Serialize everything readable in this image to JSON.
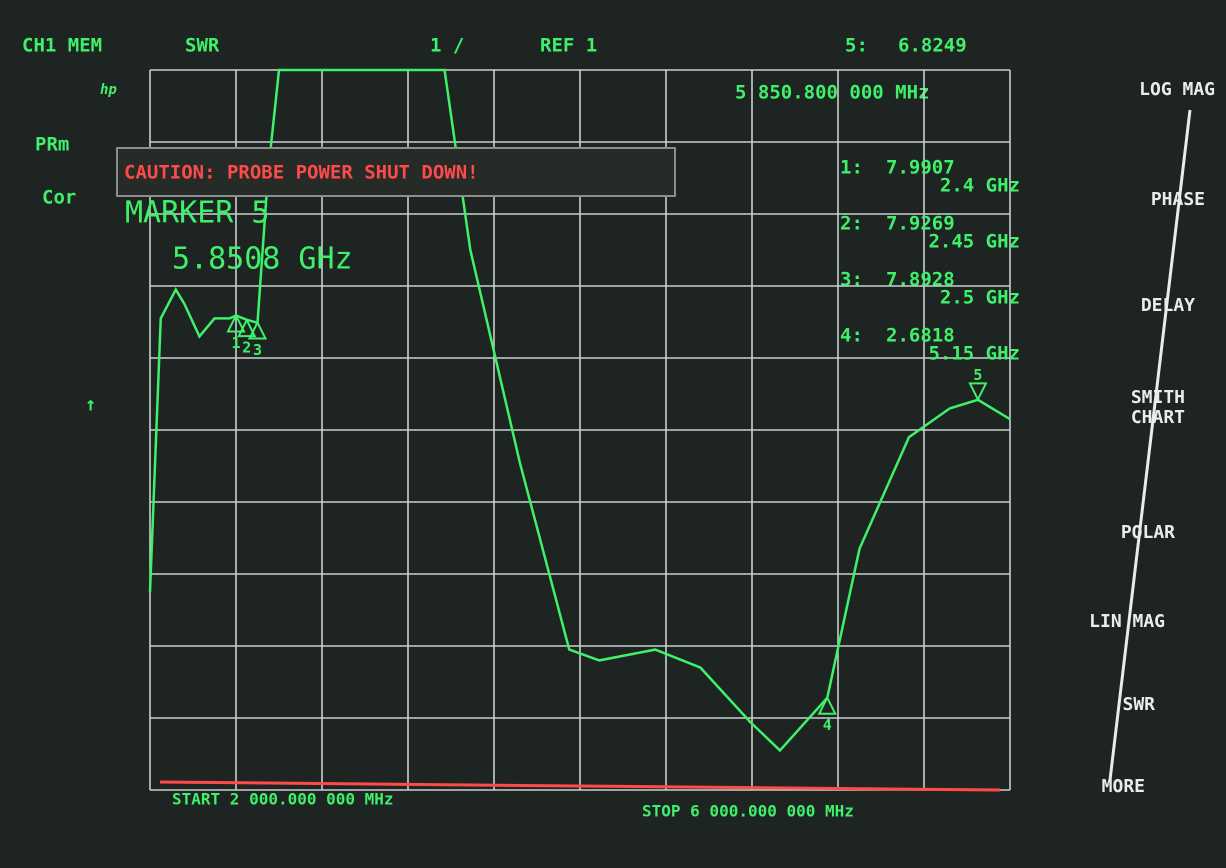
{
  "screen": {
    "channel": "CH1 MEM",
    "format": "SWR",
    "scale": "1 /",
    "reference": "REF 1",
    "active_marker": "5:",
    "active_freq": "5 850.800 000 MHz",
    "logo": "hp",
    "side_flags": [
      "PRm",
      "Cor"
    ],
    "caution": "CAUTION: PROBE POWER SHUT DOWN!",
    "marker_entry_label": "MARKER 5",
    "marker_entry_value": "5.8508 GHz",
    "marker_list": [
      {
        "label": "1:",
        "freq": "2.4 GHz"
      },
      {
        "label": "2:",
        "freq": "2.45 GHz"
      },
      {
        "label": "3:",
        "freq": "2.5 GHz"
      },
      {
        "label": "4:",
        "freq": "5.15 GHz"
      }
    ],
    "start": "START 2 000.000 000 MHz",
    "stop": "STOP 6 000.000 000 MHz",
    "menu": [
      [
        "LOG MAG"
      ],
      [
        "PHASE"
      ],
      [
        "DELAY"
      ],
      [
        "SMITH",
        "CHART"
      ],
      [
        "POLAR"
      ],
      [
        "LIN MAG"
      ],
      [
        "SWR"
      ],
      [
        "MORE"
      ]
    ]
  },
  "chart_data": {
    "type": "line",
    "color": "#3ef06a",
    "x": [
      2.0,
      2.05,
      2.12,
      2.16,
      2.23,
      2.3,
      2.37,
      2.4,
      2.45,
      2.5,
      2.55,
      2.6,
      3.37,
      3.49,
      3.72,
      3.95,
      4.09,
      4.35,
      4.56,
      4.79,
      4.93,
      5.15,
      5.3,
      5.53,
      5.72,
      5.8508,
      6.0
    ],
    "values": [
      4.15,
      7.95,
      8.35,
      8.15,
      7.7,
      7.95,
      7.95,
      7.99,
      7.93,
      7.89,
      10.0,
      11.4,
      11.4,
      8.9,
      5.95,
      3.35,
      3.2,
      3.35,
      3.1,
      2.35,
      1.95,
      2.68,
      4.75,
      6.3,
      6.7,
      6.82,
      6.55
    ],
    "xlim": [
      2,
      6
    ],
    "ylim": [
      1.4,
      11.4
    ],
    "markers": [
      {
        "label": "1",
        "x": 2.4,
        "y": 7.9907
      },
      {
        "label": "2",
        "x": 2.45,
        "y": 7.9269
      },
      {
        "label": "3",
        "x": 2.5,
        "y": 7.8928
      },
      {
        "label": "4",
        "x": 5.15,
        "y": 2.6818
      },
      {
        "label": "5",
        "x": 5.8508,
        "y": 6.8249
      }
    ]
  }
}
